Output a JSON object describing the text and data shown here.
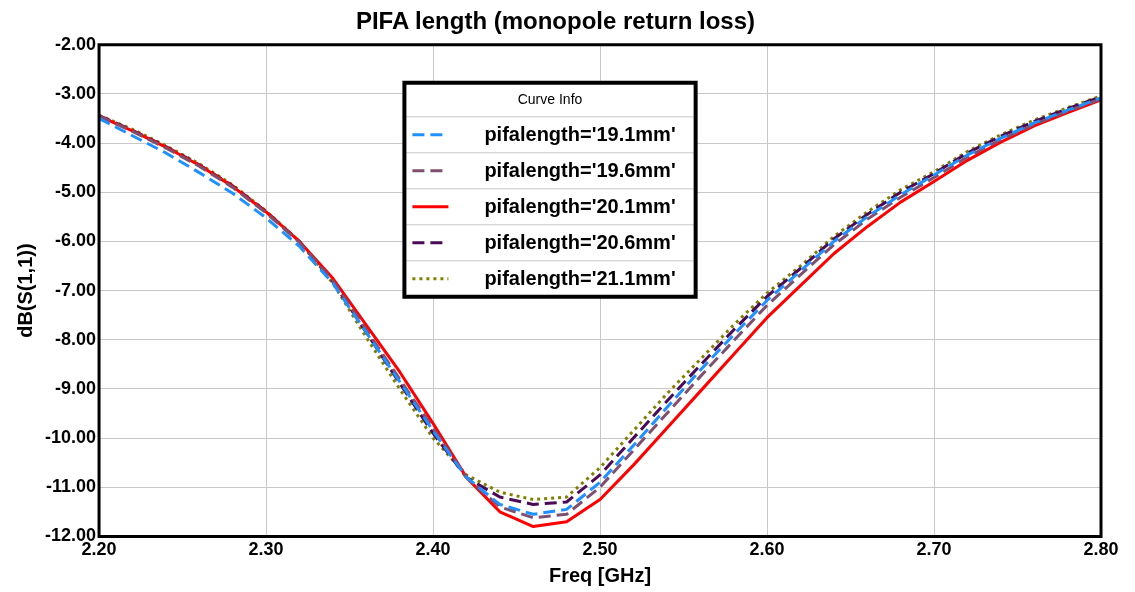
{
  "chart_data": {
    "type": "line",
    "title": "PIFA length (monopole return loss)",
    "xlabel": "Freq [GHz]",
    "ylabel": "dB(S(1,1))",
    "legend_title": "Curve Info",
    "legend": "top",
    "x": [
      2.2,
      2.22,
      2.24,
      2.26,
      2.28,
      2.3,
      2.32,
      2.34,
      2.36,
      2.38,
      2.4,
      2.42,
      2.44,
      2.46,
      2.48,
      2.5,
      2.52,
      2.54,
      2.56,
      2.58,
      2.6,
      2.62,
      2.64,
      2.66,
      2.68,
      2.7,
      2.72,
      2.74,
      2.76,
      2.78,
      2.8
    ],
    "series": [
      {
        "name": "pifalength='19.1mm'",
        "color": "#1e90ff",
        "line_style": "dashed",
        "values": [
          -3.5,
          -3.85,
          -4.2,
          -4.6,
          -5.02,
          -5.52,
          -6.1,
          -6.85,
          -7.85,
          -8.85,
          -9.85,
          -10.8,
          -11.35,
          -11.55,
          -11.45,
          -10.9,
          -10.15,
          -9.38,
          -8.62,
          -7.9,
          -7.2,
          -6.6,
          -6.0,
          -5.5,
          -5.05,
          -4.65,
          -4.24,
          -3.9,
          -3.59,
          -3.33,
          -3.08
        ]
      },
      {
        "name": "pifalength='19.6mm'",
        "color": "#7f4f6f",
        "line_style": "dashed",
        "values": [
          -3.45,
          -3.76,
          -4.1,
          -4.47,
          -4.9,
          -5.42,
          -6.02,
          -6.8,
          -7.8,
          -8.8,
          -9.8,
          -10.8,
          -11.4,
          -11.62,
          -11.55,
          -11.0,
          -10.25,
          -9.5,
          -8.75,
          -8.02,
          -7.3,
          -6.68,
          -6.07,
          -5.55,
          -5.1,
          -4.7,
          -4.28,
          -3.93,
          -3.62,
          -3.35,
          -3.1
        ]
      },
      {
        "name": "pifalength='20.1mm'",
        "color": "#ff0000",
        "line_style": "solid",
        "values": [
          -3.45,
          -3.75,
          -4.08,
          -4.45,
          -4.88,
          -5.4,
          -6.0,
          -6.75,
          -7.7,
          -8.65,
          -9.7,
          -10.8,
          -11.5,
          -11.8,
          -11.7,
          -11.25,
          -10.55,
          -9.8,
          -9.05,
          -8.3,
          -7.55,
          -6.9,
          -6.25,
          -5.7,
          -5.2,
          -4.78,
          -4.35,
          -3.98,
          -3.65,
          -3.38,
          -3.12
        ]
      },
      {
        "name": "pifalength='20.6mm'",
        "color": "#4b0a55",
        "line_style": "dashed",
        "values": [
          -3.44,
          -3.74,
          -4.07,
          -4.44,
          -4.87,
          -5.39,
          -6.0,
          -6.82,
          -7.85,
          -8.88,
          -9.9,
          -10.8,
          -11.2,
          -11.35,
          -11.3,
          -10.75,
          -10.0,
          -9.25,
          -8.52,
          -7.8,
          -7.12,
          -6.55,
          -5.95,
          -5.45,
          -5.0,
          -4.62,
          -4.2,
          -3.86,
          -3.56,
          -3.3,
          -3.06
        ]
      },
      {
        "name": "pifalength='21.1mm'",
        "color": "#808000",
        "line_style": "dotted",
        "values": [
          -3.43,
          -3.72,
          -4.05,
          -4.42,
          -4.85,
          -5.38,
          -6.0,
          -6.85,
          -7.95,
          -9.0,
          -10.0,
          -10.75,
          -11.1,
          -11.25,
          -11.2,
          -10.6,
          -9.85,
          -9.1,
          -8.4,
          -7.7,
          -7.05,
          -6.5,
          -5.9,
          -5.4,
          -4.95,
          -4.58,
          -4.17,
          -3.83,
          -3.53,
          -3.28,
          -3.04
        ]
      }
    ],
    "xlim": [
      2.2,
      2.8
    ],
    "xticks": [
      {
        "value": 2.2,
        "label": "2.20"
      },
      {
        "value": 2.3,
        "label": "2.30"
      },
      {
        "value": 2.4,
        "label": "2.40"
      },
      {
        "value": 2.5,
        "label": "2.50"
      },
      {
        "value": 2.6,
        "label": "2.60"
      },
      {
        "value": 2.7,
        "label": "2.70"
      },
      {
        "value": 2.8,
        "label": "2.80"
      }
    ],
    "ylim": [
      -12,
      -2
    ],
    "yticks": [
      {
        "value": -2,
        "label": "-2.00"
      },
      {
        "value": -3,
        "label": "-3.00"
      },
      {
        "value": -4,
        "label": "-4.00"
      },
      {
        "value": -5,
        "label": "-5.00"
      },
      {
        "value": -6,
        "label": "-6.00"
      },
      {
        "value": -7,
        "label": "-7.00"
      },
      {
        "value": -8,
        "label": "-8.00"
      },
      {
        "value": -9,
        "label": "-9.00"
      },
      {
        "value": -10,
        "label": "-10.00"
      },
      {
        "value": -11,
        "label": "-11.00"
      },
      {
        "value": -12,
        "label": "-12.00"
      }
    ],
    "grid": true,
    "marker": "none"
  }
}
